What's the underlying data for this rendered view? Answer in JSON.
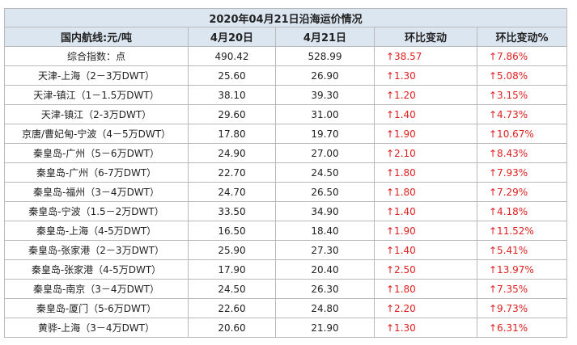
{
  "title": "2020年04月21日沿海运价情况",
  "table": {
    "header": [
      "国内航线:元/吨",
      "4月20日",
      "4月21日",
      "环比变动",
      "环比变动%"
    ],
    "rows": [
      [
        "综合指数：点",
        "490.42",
        "528.99",
        "↑38.57",
        "↑7.86%"
      ],
      [
        "天津-上海（2－3万DWT）",
        "25.60",
        "26.90",
        "↑1.30",
        "↑5.08%"
      ],
      [
        "天津-镇江（1－1.5万DWT）",
        "38.10",
        "39.30",
        "↑1.20",
        "↑3.15%"
      ],
      [
        "天津-镇江（2-3万DWT）",
        "29.60",
        "31.00",
        "↑1.40",
        "↑4.73%"
      ],
      [
        "京唐/曹妃甸-宁波（4－5万DWT）",
        "17.80",
        "19.70",
        "↑1.90",
        "↑10.67%"
      ],
      [
        "秦皇岛-广州（5－6万DWT）",
        "24.90",
        "27.00",
        "↑2.10",
        "↑8.43%"
      ],
      [
        "秦皇岛-广州（6-7万DWT）",
        "22.70",
        "24.50",
        "↑1.80",
        "↑7.93%"
      ],
      [
        "秦皇岛-福州（3－4万DWT）",
        "24.70",
        "26.50",
        "↑1.80",
        "↑7.29%"
      ],
      [
        "秦皇岛-宁波（1.5－2万DWT）",
        "33.50",
        "34.90",
        "↑1.40",
        "↑4.18%"
      ],
      [
        "秦皇岛-上海（4-5万DWT）",
        "16.50",
        "18.40",
        "↑1.90",
        "↑11.52%"
      ],
      [
        "秦皇岛-张家港（2－3万DWT）",
        "25.90",
        "27.30",
        "↑1.40",
        "↑5.41%"
      ],
      [
        "秦皇岛-张家港（4-5万DWT）",
        "17.90",
        "20.40",
        "↑2.50",
        "↑13.97%"
      ],
      [
        "秦皇岛-南京（3－4万DWT）",
        "24.50",
        "26.30",
        "↑1.80",
        "↑7.35%"
      ],
      [
        "秦皇岛-厦门（5-6万DWT）",
        "22.60",
        "24.80",
        "↑2.20",
        "↑9.73%"
      ],
      [
        "黄骅-上海（3－4万DWT）",
        "20.60",
        "21.90",
        "↑1.30",
        "↑6.31%"
      ]
    ]
  }
}
